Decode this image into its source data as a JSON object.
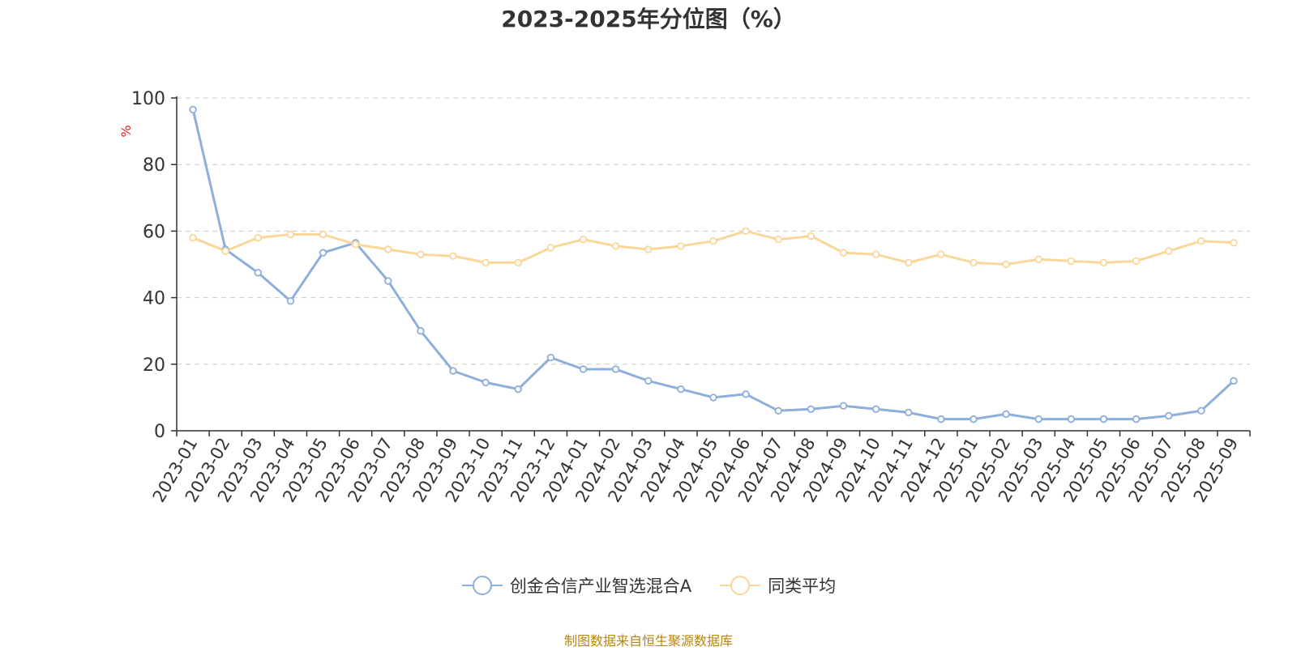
{
  "chart_data": {
    "type": "line",
    "title": "2023-2025年分位图（%）",
    "xlabel": "",
    "ylabel": "%",
    "ylim": [
      0,
      100
    ],
    "yticks": [
      0,
      20,
      40,
      60,
      80,
      100
    ],
    "grid": true,
    "legend_position": "bottom-center",
    "categories": [
      "2023-01",
      "2023-02",
      "2023-03",
      "2023-04",
      "2023-05",
      "2023-06",
      "2023-07",
      "2023-08",
      "2023-09",
      "2023-10",
      "2023-11",
      "2023-12",
      "2024-01",
      "2024-02",
      "2024-03",
      "2024-04",
      "2024-05",
      "2024-06",
      "2024-07",
      "2024-08",
      "2024-09",
      "2024-10",
      "2024-11",
      "2024-12",
      "2025-01",
      "2025-02",
      "2025-03",
      "2025-04",
      "2025-05",
      "2025-06",
      "2025-07",
      "2025-08",
      "2025-09"
    ],
    "series": [
      {
        "name": "创金合信产业智选混合A",
        "color": "#8eaedb",
        "values": [
          96.5,
          54.5,
          47.5,
          39.0,
          53.5,
          56.5,
          45.0,
          30.0,
          18.0,
          14.5,
          12.5,
          22.0,
          18.5,
          18.5,
          15.0,
          12.5,
          10.0,
          11.0,
          6.0,
          6.5,
          7.5,
          6.5,
          5.5,
          3.5,
          3.5,
          5.0,
          3.5,
          3.5,
          3.5,
          3.5,
          4.5,
          6.0,
          15.0
        ]
      },
      {
        "name": "同类平均",
        "color": "#fbd699",
        "values": [
          58.0,
          54.0,
          58.0,
          59.0,
          59.0,
          56.0,
          54.5,
          53.0,
          52.5,
          50.5,
          50.5,
          55.0,
          57.5,
          55.5,
          54.5,
          55.5,
          57.0,
          60.0,
          57.5,
          58.5,
          53.5,
          53.0,
          50.5,
          53.0,
          50.5,
          50.0,
          51.5,
          51.0,
          50.5,
          51.0,
          54.0,
          57.0,
          56.5
        ]
      }
    ]
  },
  "legend": {
    "items": [
      {
        "label": "创金合信产业智选混合A",
        "color": "#8eaedb"
      },
      {
        "label": "同类平均",
        "color": "#fbd699"
      }
    ]
  },
  "colors": {
    "axis": "#333333",
    "grid": "#cccccc",
    "title": "#333333",
    "ylabel": "#e02020",
    "source": "#b8860b"
  },
  "source_text": "制图数据来自恒生聚源数据库"
}
